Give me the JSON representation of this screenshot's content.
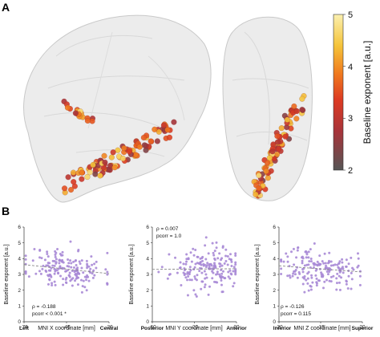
{
  "panel_a": {
    "letter": "A",
    "colorbar": {
      "label": "Baseline exponent [a.u.]",
      "ticks": [
        "2",
        "3",
        "4",
        "5"
      ],
      "range": [
        2,
        5
      ],
      "colors": [
        "#555555",
        "#a8343a",
        "#dc3a22",
        "#f07a1e",
        "#f5c43a",
        "#fbf0b0"
      ]
    }
  },
  "panel_b": {
    "letter": "B",
    "ylabel": "Baseline exponent [a.u.]",
    "marker_color": "#a98ad6",
    "fit_color": "#888888"
  },
  "chart_data": [
    {
      "type": "scatter",
      "xlabel": "MNI X coordinate [mm]",
      "ylabel": "Baseline exponent [a.u.]",
      "xlim": [
        -70,
        -20
      ],
      "ylim": [
        0,
        6
      ],
      "xticks": [
        "-70",
        "-45",
        "-20"
      ],
      "yticks": [
        "0",
        "1",
        "2",
        "3",
        "4",
        "5",
        "6"
      ],
      "axis_end_labels": [
        "Left",
        "Central"
      ],
      "stat_rho": "ρ = -0.188",
      "stat_p": "pcorr < 0.001 *",
      "fit": {
        "x": [
          -70,
          -20
        ],
        "y": [
          3.62,
          3.05
        ]
      },
      "seed": 11,
      "n_points": 180,
      "x_center": -45,
      "x_spread": 11,
      "y_center": 3.35,
      "y_spread": 0.65
    },
    {
      "type": "scatter",
      "xlabel": "MNI Y coordinate [mm]",
      "ylabel": "Baseline exponent [a.u.]",
      "xlim": [
        -60,
        20
      ],
      "ylim": [
        0,
        6
      ],
      "xticks": [
        "-60",
        "-20",
        "20"
      ],
      "yticks": [
        "0",
        "1",
        "2",
        "3",
        "4",
        "5",
        "6"
      ],
      "axis_end_labels": [
        "Posterior",
        "Anterior"
      ],
      "stat_rho": "ρ = 0.007",
      "stat_p": "pcorr = 1.0",
      "fit": {
        "x": [
          -60,
          20
        ],
        "y": [
          3.32,
          3.36
        ]
      },
      "seed": 23,
      "n_points": 180,
      "x_center": -8,
      "x_spread": 17,
      "y_center": 3.35,
      "y_spread": 0.65
    },
    {
      "type": "scatter",
      "xlabel": "MNI Z coordinate [mm]",
      "ylabel": "Baseline exponent [a.u.]",
      "xlim": [
        -20,
        20
      ],
      "ylim": [
        0,
        6
      ],
      "xticks": [
        "-20",
        "-15",
        "20"
      ],
      "yticks": [
        "0",
        "1",
        "2",
        "3",
        "4",
        "5",
        "6"
      ],
      "axis_end_labels": [
        "Inferior",
        "Superior"
      ],
      "stat_rho": "ρ = -0.126",
      "stat_p": "pcorr = 0.115",
      "fit": {
        "x": [
          -20,
          20
        ],
        "y": [
          3.55,
          3.15
        ]
      },
      "seed": 37,
      "n_points": 180,
      "x_center": -1,
      "x_spread": 9,
      "y_center": 3.35,
      "y_spread": 0.65
    }
  ]
}
